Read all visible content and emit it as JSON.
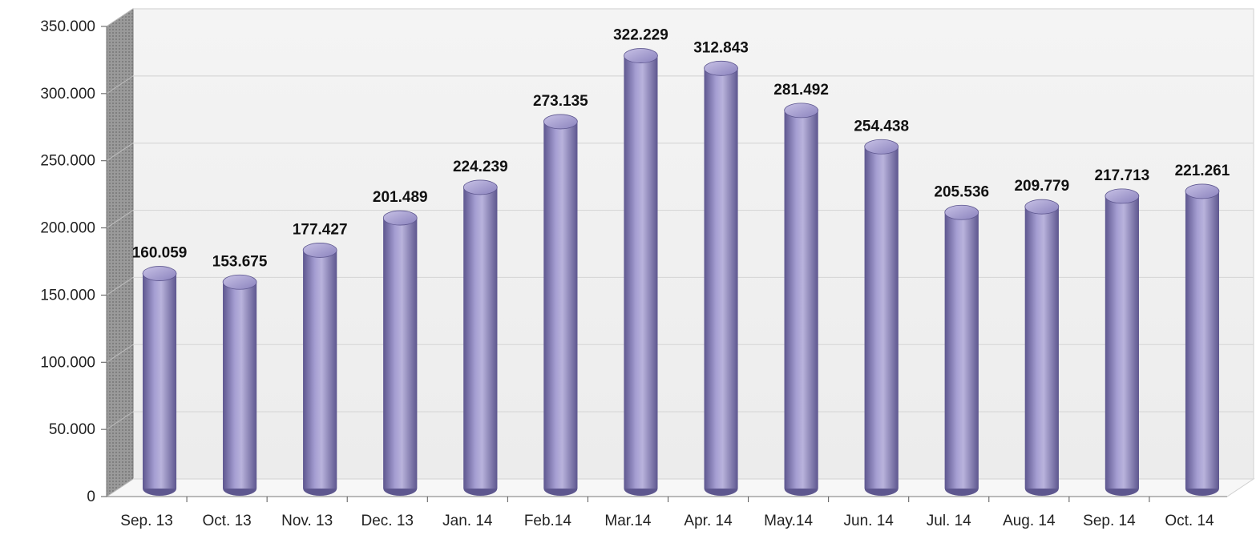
{
  "chart_data": {
    "type": "bar",
    "categories": [
      "Sep. 13",
      "Oct. 13",
      "Nov. 13",
      "Dec. 13",
      "Jan. 14",
      "Feb.14",
      "Mar.14",
      "Apr. 14",
      "May.14",
      "Jun. 14",
      "Jul. 14",
      "Aug. 14",
      "Sep. 14",
      "Oct. 14"
    ],
    "values": [
      160059,
      153675,
      177427,
      201489,
      224239,
      273135,
      322229,
      312843,
      281492,
      254438,
      205536,
      209779,
      217713,
      221261
    ],
    "value_labels": [
      "160.059",
      "153.675",
      "177.427",
      "201.489",
      "224.239",
      "273.135",
      "322.229",
      "312.843",
      "281.492",
      "254.438",
      "205.536",
      "209.779",
      "217.713",
      "221.261"
    ],
    "y_ticks": [
      0,
      50000,
      100000,
      150000,
      200000,
      250000,
      300000,
      350000
    ],
    "y_tick_labels": [
      "0",
      "50.000",
      "100.000",
      "150.000",
      "200.000",
      "250.000",
      "300.000",
      "350.000"
    ],
    "ylim": [
      0,
      350000
    ],
    "title": "",
    "xlabel": "",
    "ylabel": "",
    "grid": true,
    "legend": "none",
    "colors": {
      "bar": "#8a82bd",
      "bar_dark": "#5e578f",
      "bar_light": "#b9b3dc",
      "wall": "#efefef",
      "gridline": "#d8d8d8",
      "side_wall": "#9a9a9a"
    }
  }
}
